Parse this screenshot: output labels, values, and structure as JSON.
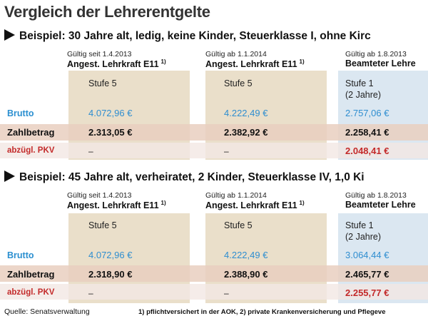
{
  "title": "Vergleich der Lehrerentgelte",
  "labels": {
    "brutto": "Brutto",
    "zahlbetrag": "Zahlbetrag",
    "pkv": "abzügl. PKV"
  },
  "examples": [
    {
      "heading": "Beispiel: 30 Jahre alt, ledig, keine Kinder, Steuerklasse I, ohne Kirc",
      "columns": [
        {
          "valid": "Gültig seit 1.4.2013",
          "role": "Angest. Lehrkraft E11",
          "note": "1)",
          "stufe": "Stufe 5",
          "stufe2": "",
          "brutto": "4.072,96 €",
          "zahl": "2.313,05 €",
          "pkv": "–"
        },
        {
          "valid": "Gültig ab 1.1.2014",
          "role": "Angest. Lehrkraft E11",
          "note": "1)",
          "stufe": "Stufe 5",
          "stufe2": "",
          "brutto": "4.222,49 €",
          "zahl": "2.382,92 €",
          "pkv": "–"
        },
        {
          "valid": "Gültig ab 1.8.2013",
          "role": "Beamteter Lehre",
          "note": "",
          "stufe": "Stufe 1",
          "stufe2": "(2 Jahre)",
          "brutto": "2.757,06 €",
          "zahl": "2.258,41 €",
          "pkv": "2.048,41 €"
        }
      ]
    },
    {
      "heading": "Beispiel: 45 Jahre alt, verheiratet, 2 Kinder, Steuerklasse IV, 1,0 Ki",
      "columns": [
        {
          "valid": "Gültig seit 1.4.2013",
          "role": "Angest. Lehrkraft E11",
          "note": "1)",
          "stufe": "Stufe 5",
          "stufe2": "",
          "brutto": "4.072,96 €",
          "zahl": "2.318,90 €",
          "pkv": "–"
        },
        {
          "valid": "Gültig ab 1.1.2014",
          "role": "Angest. Lehrkraft E11",
          "note": "1)",
          "stufe": "Stufe 5",
          "stufe2": "",
          "brutto": "4.222,49 €",
          "zahl": "2.388,90 €",
          "pkv": "–"
        },
        {
          "valid": "Gültig ab 1.8.2013",
          "role": "Beamteter Lehre",
          "note": "",
          "stufe": "Stufe 1",
          "stufe2": "(2 Jahre)",
          "brutto": "3.064,44 €",
          "zahl": "2.465,77 €",
          "pkv": "2.255,77 €"
        }
      ]
    }
  ],
  "source": "Quelle: Senatsverwaltung",
  "footnote": "1) pflichtversichert in der AOK, 2) private Krankenversicherung und Pflegeve"
}
